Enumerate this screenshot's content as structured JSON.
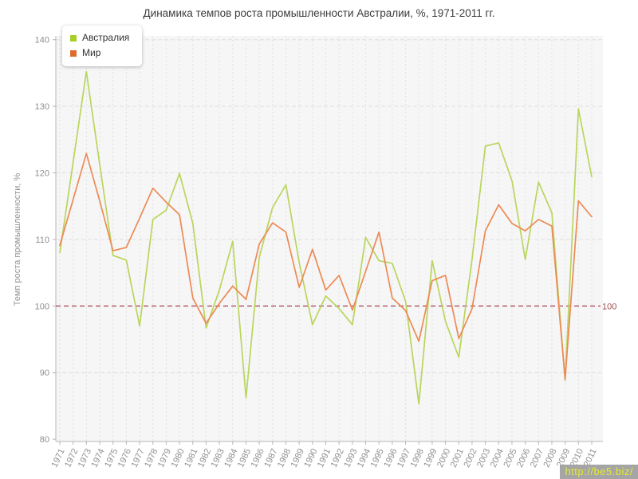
{
  "chart": {
    "watermark": "http://be5.biz/"
  },
  "chart_data": {
    "type": "line",
    "title": "Динамика темпов роста промышленности Австралии, %, 1971-2011 гг.",
    "xlabel": "",
    "ylabel": "Темп роста промышленности, %",
    "ylim": [
      80,
      140
    ],
    "yticks": [
      80,
      90,
      100,
      110,
      120,
      130,
      140
    ],
    "grid": true,
    "legend_position": "top-left",
    "baseline": {
      "value": 100,
      "label": "100",
      "color": "#b25565",
      "label_color": "#a05050"
    },
    "x": [
      1971,
      1972,
      1973,
      1974,
      1975,
      1976,
      1977,
      1978,
      1979,
      1980,
      1981,
      1982,
      1983,
      1984,
      1985,
      1986,
      1987,
      1988,
      1989,
      1990,
      1991,
      1992,
      1993,
      1994,
      1995,
      1996,
      1997,
      1998,
      1999,
      2000,
      2001,
      2002,
      2003,
      2004,
      2005,
      2006,
      2007,
      2008,
      2009,
      2010,
      2011
    ],
    "series": [
      {
        "name": "Австралия",
        "color": "#b9d55c",
        "legend_color": "#a6ce27",
        "values": [
          108.0,
          121.6,
          135.2,
          121.3,
          107.6,
          106.9,
          97.0,
          113.0,
          114.4,
          119.9,
          112.4,
          96.7,
          102.4,
          109.7,
          86.2,
          107.3,
          114.8,
          118.2,
          106.5,
          97.2,
          101.5,
          99.6,
          97.2,
          110.3,
          106.8,
          106.4,
          100.7,
          85.3,
          106.8,
          97.7,
          92.3,
          107.0,
          124.0,
          124.5,
          118.8,
          107.0,
          118.6,
          114.0,
          88.8,
          129.6,
          119.4
        ]
      },
      {
        "name": "Мир",
        "color": "#ec8a55",
        "legend_color": "#dd6b2b",
        "values": [
          109.1,
          116.0,
          122.9,
          115.8,
          108.3,
          108.8,
          113.2,
          117.7,
          115.6,
          113.7,
          101.2,
          97.4,
          100.4,
          103.0,
          101.0,
          109.3,
          112.5,
          111.1,
          102.8,
          108.5,
          102.4,
          104.6,
          99.4,
          105.2,
          111.1,
          101.2,
          99.3,
          94.7,
          103.8,
          104.6,
          95.1,
          99.6,
          111.3,
          115.2,
          112.4,
          111.3,
          113.0,
          112.0,
          89.0,
          115.8,
          113.4
        ]
      }
    ],
    "axis_colors": {
      "axis": "#b5b5b5",
      "grid": "#e0e0e0",
      "tick_label": "#8f8f8f",
      "plot_bg": "#f6f6f6"
    }
  }
}
